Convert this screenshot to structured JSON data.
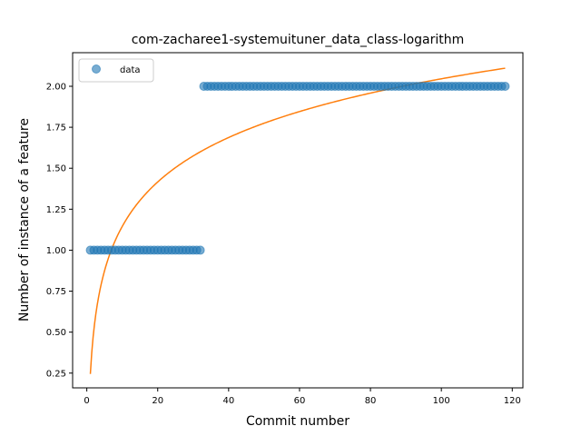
{
  "chart_data": {
    "type": "scatter",
    "title": "com-zacharee1-systemuituner_data_class-logarithm",
    "xlabel": "Commit number",
    "ylabel": "Number of instance of a feature",
    "xlim": [
      -4,
      123
    ],
    "ylim": [
      0.16,
      2.205
    ],
    "x_ticks": [
      0,
      20,
      40,
      60,
      80,
      100,
      120
    ],
    "y_ticks": [
      0.25,
      0.5,
      0.75,
      1.0,
      1.25,
      1.5,
      1.75,
      2.0
    ],
    "x_tick_labels": [
      "0",
      "20",
      "40",
      "60",
      "80",
      "100",
      "120"
    ],
    "y_tick_labels": [
      "0.25",
      "0.50",
      "0.75",
      "1.00",
      "1.25",
      "1.50",
      "1.75",
      "2.00"
    ],
    "grid": false,
    "legend": {
      "position": "top-left",
      "entries": [
        "data"
      ]
    },
    "colors": {
      "data": "#1f77b4",
      "fit": "#ff7f0e"
    },
    "series": [
      {
        "name": "data",
        "kind": "scatter",
        "segments": [
          {
            "x_start": 1,
            "x_end": 32,
            "y": 1
          },
          {
            "x_start": 33,
            "x_end": 118,
            "y": 2
          }
        ]
      },
      {
        "kind": "line",
        "model": "logarithmic",
        "a": 0.245,
        "b": 0.391,
        "x_range": [
          1,
          118
        ]
      }
    ]
  }
}
